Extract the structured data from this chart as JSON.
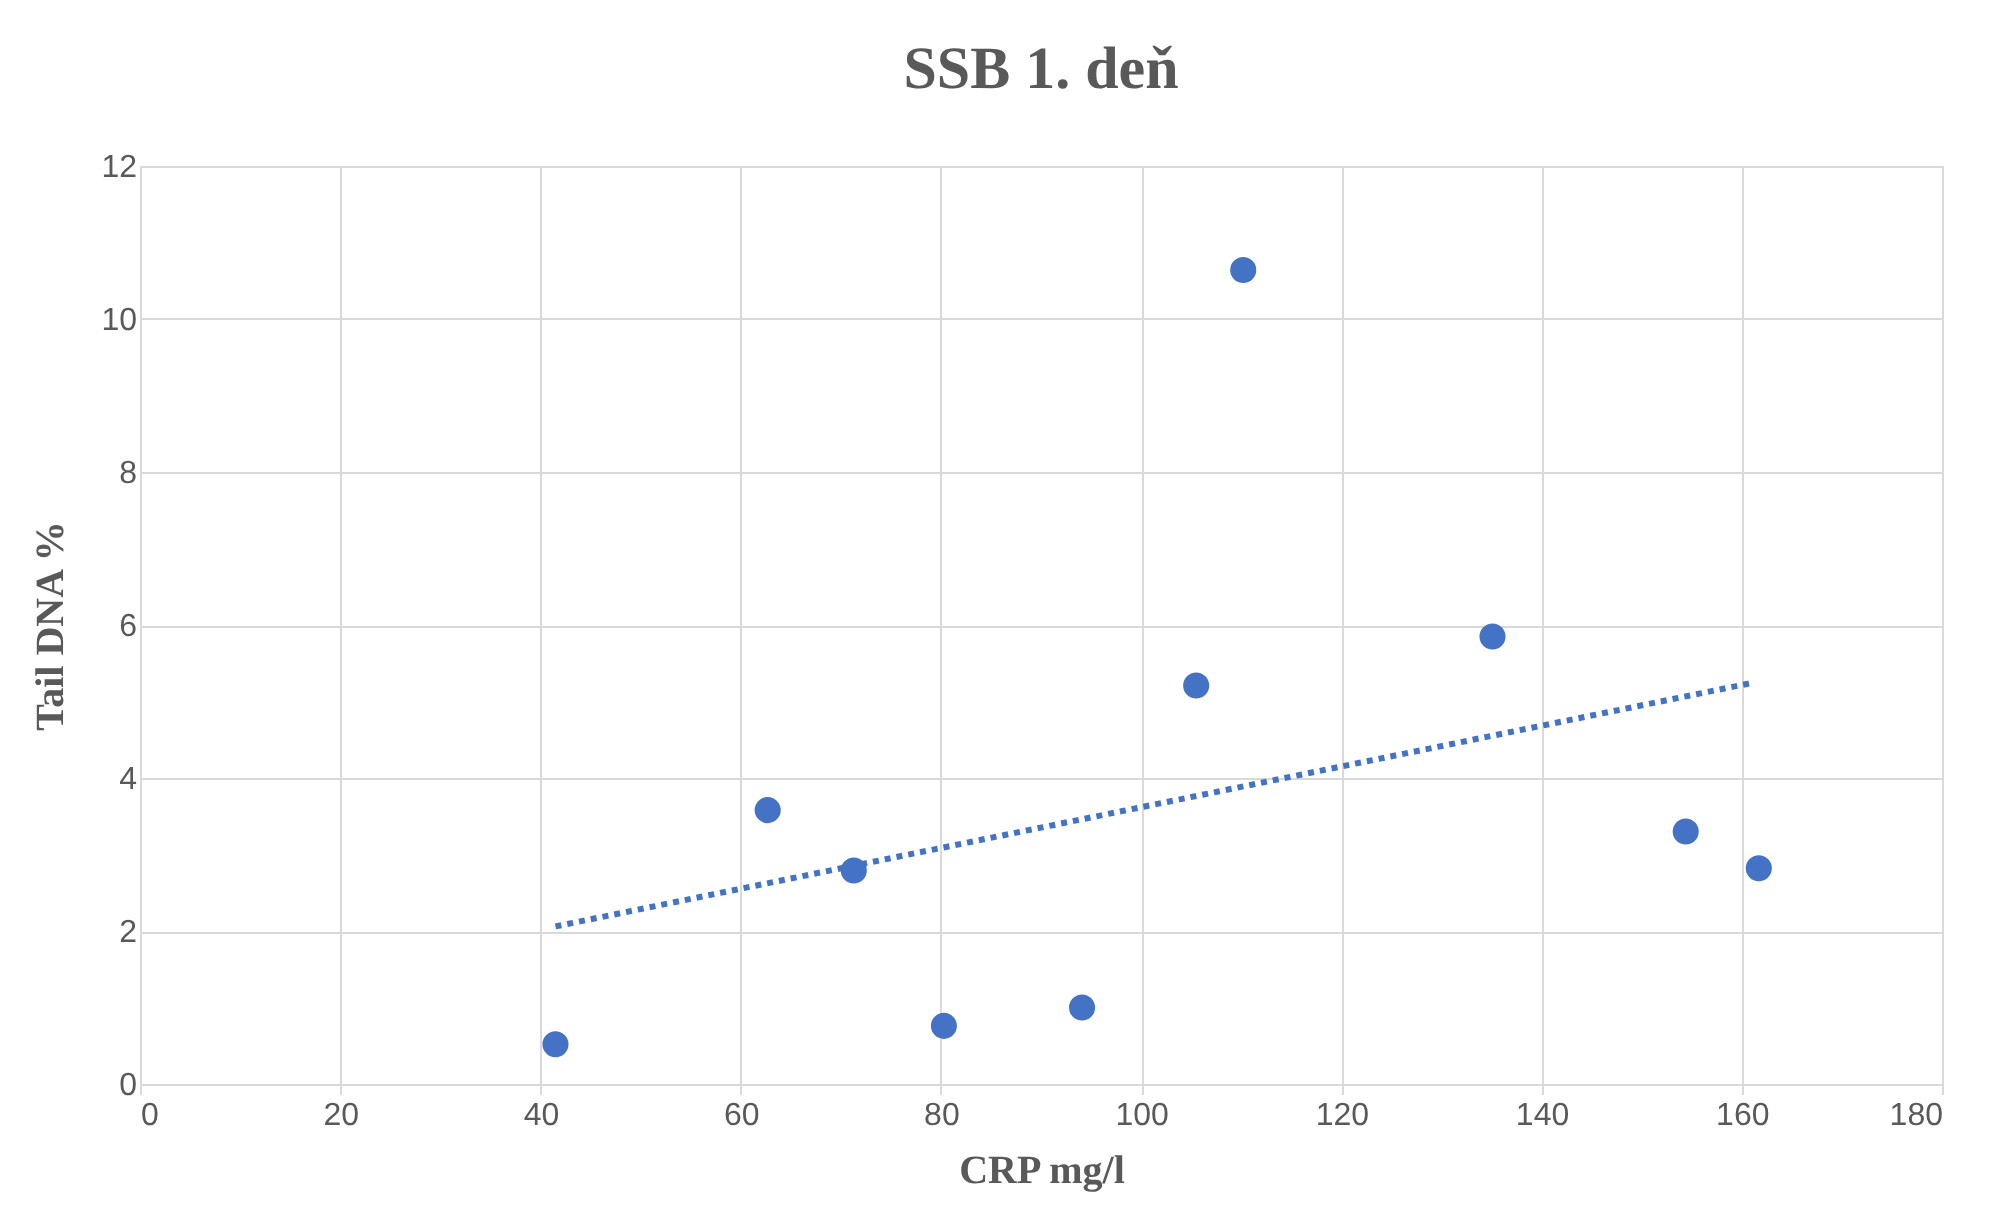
{
  "chart_data": {
    "type": "scatter",
    "title": "SSB 1. deň",
    "xlabel": "CRP mg/l",
    "ylabel": "Tail DNA %",
    "x": [
      41.5,
      62.7,
      71.3,
      80.3,
      94.1,
      105.5,
      110.2,
      135.1,
      154.4,
      161.7
    ],
    "series": [
      {
        "color": "#4472c4",
        "values": [
          0.52,
          3.58,
          2.79,
          0.76,
          1.0,
          5.21,
          10.64,
          5.85,
          3.3,
          2.82
        ],
        "marker": "circle"
      },
      {
        "type": "line",
        "x": [
          41.5,
          160.9
        ],
        "values": [
          2.06,
          5.24
        ],
        "color": "#4472c4",
        "line_style": "dotted"
      }
    ],
    "xlim": [
      0,
      180
    ],
    "xticks": [
      0,
      20,
      40,
      60,
      80,
      100,
      120,
      140,
      160,
      180
    ],
    "ylim": [
      0,
      12
    ],
    "yticks": [
      0,
      2,
      4,
      6,
      8,
      10,
      12
    ],
    "grid": true
  }
}
